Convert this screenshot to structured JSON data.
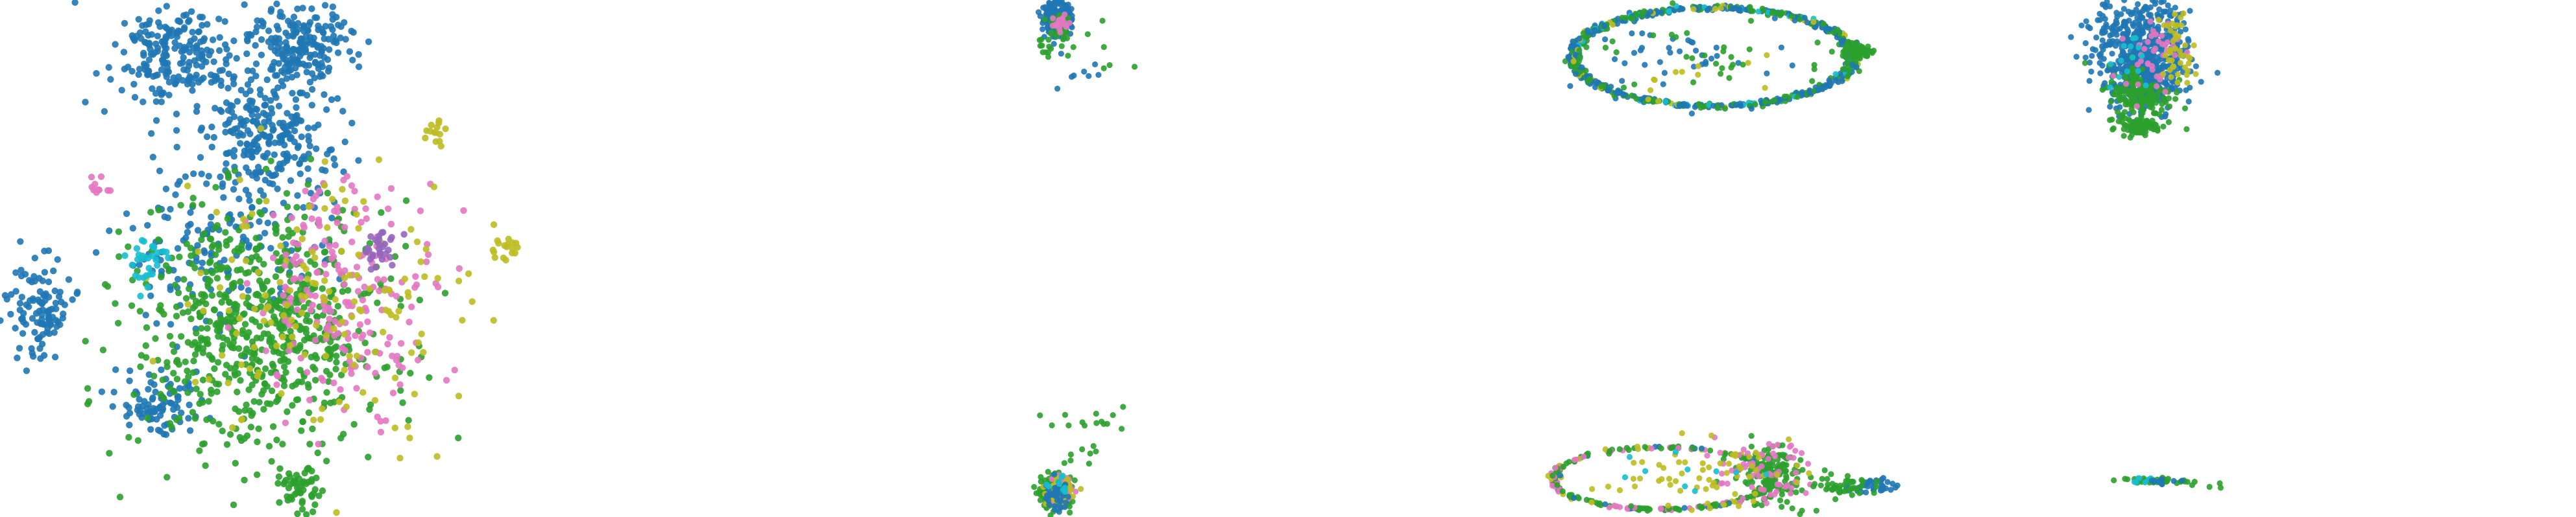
{
  "figure": {
    "title": ""
  },
  "palette": {
    "blue": "#1f77b4",
    "green": "#2ca02c",
    "pink": "#e377c2",
    "olive": "#bcbd22",
    "cyan": "#17becf",
    "purple": "#9467bd"
  },
  "chart_data": [
    {
      "type": "scatter",
      "title": "",
      "xlabel": "",
      "ylabel": "",
      "xlim": [
        0,
        100
      ],
      "ylim": [
        0,
        100
      ],
      "axes_visible": false,
      "grid": false,
      "legend": "none",
      "clusters": [
        {
          "color": "blue",
          "cx": 34,
          "cy": 89,
          "sx": 6,
          "sy": 5,
          "n": 220
        },
        {
          "color": "blue",
          "cx": 58,
          "cy": 91,
          "sx": 5,
          "sy": 4,
          "n": 200
        },
        {
          "color": "blue",
          "cx": 52,
          "cy": 74,
          "sx": 7,
          "sy": 6,
          "n": 240
        },
        {
          "color": "blue",
          "cx": 8,
          "cy": 40,
          "sx": 3,
          "sy": 5,
          "n": 110
        },
        {
          "color": "blue",
          "cx": 30,
          "cy": 22,
          "sx": 4,
          "sy": 3,
          "n": 90
        },
        {
          "color": "blue",
          "cx": 42,
          "cy": 52,
          "sx": 10,
          "sy": 8,
          "n": 160
        },
        {
          "color": "green",
          "cx": 50,
          "cy": 36,
          "sx": 12,
          "sy": 12,
          "n": 700
        },
        {
          "color": "green",
          "cx": 58,
          "cy": 5,
          "sx": 2,
          "sy": 2,
          "n": 50
        },
        {
          "color": "pink",
          "cx": 67,
          "cy": 44,
          "sx": 9,
          "sy": 11,
          "n": 200
        },
        {
          "color": "pink",
          "cx": 19,
          "cy": 64,
          "sx": 1,
          "sy": 1,
          "n": 10
        },
        {
          "color": "olive",
          "cx": 62,
          "cy": 42,
          "sx": 14,
          "sy": 14,
          "n": 150
        },
        {
          "color": "olive",
          "cx": 84,
          "cy": 75,
          "sx": 1,
          "sy": 1.5,
          "n": 14
        },
        {
          "color": "olive",
          "cx": 97,
          "cy": 52,
          "sx": 1.5,
          "sy": 1.5,
          "n": 18
        },
        {
          "color": "cyan",
          "cx": 28,
          "cy": 49,
          "sx": 2,
          "sy": 3,
          "n": 30
        },
        {
          "color": "purple",
          "cx": 73,
          "cy": 52,
          "sx": 2,
          "sy": 2,
          "n": 30
        }
      ]
    },
    {
      "type": "scatter",
      "title": "",
      "xlabel": "",
      "ylabel": "",
      "xlim": [
        0,
        100
      ],
      "ylim": [
        0,
        100
      ],
      "axes_visible": false,
      "grid": false,
      "legend": "none",
      "clusters": [
        {
          "color": "blue",
          "cx": 10,
          "cy": 93,
          "sx": 3,
          "sy": 3,
          "n": 220
        },
        {
          "color": "green",
          "cx": 11,
          "cy": 90,
          "sx": 3,
          "sy": 3,
          "n": 40
        },
        {
          "color": "pink",
          "cx": 12,
          "cy": 91,
          "sx": 2,
          "sy": 2,
          "n": 20
        },
        {
          "color": "green",
          "cx": 6,
          "cy": 82,
          "sx": 2,
          "sy": 2,
          "n": 10
        },
        {
          "color": "green",
          "cx": 30,
          "cy": 85,
          "sx": 6,
          "sy": 6,
          "n": 8
        },
        {
          "color": "blue",
          "cx": 15,
          "cy": 72,
          "sx": 8,
          "sy": 5,
          "n": 8
        }
      ]
    },
    {
      "type": "scatter",
      "title": "",
      "xlabel": "",
      "ylabel": "",
      "xlim": [
        0,
        100
      ],
      "ylim": [
        0,
        100
      ],
      "axes_visible": false,
      "grid": false,
      "legend": "none",
      "clusters": [
        {
          "color": "green",
          "cx": 10,
          "cy": 9,
          "sx": 3,
          "sy": 3,
          "n": 240
        },
        {
          "color": "pink",
          "cx": 11,
          "cy": 10,
          "sx": 2.5,
          "sy": 2.5,
          "n": 80
        },
        {
          "color": "olive",
          "cx": 11,
          "cy": 10,
          "sx": 2.5,
          "sy": 2.5,
          "n": 50
        },
        {
          "color": "blue",
          "cx": 10,
          "cy": 8,
          "sx": 3,
          "sy": 3,
          "n": 40
        },
        {
          "color": "cyan",
          "cx": 12,
          "cy": 11,
          "sx": 2,
          "sy": 2,
          "n": 10
        },
        {
          "color": "green",
          "cx": 25,
          "cy": 36,
          "sx": 10,
          "sy": 2,
          "n": 14
        },
        {
          "color": "green",
          "cx": 20,
          "cy": 22,
          "sx": 5,
          "sy": 4,
          "n": 8
        }
      ]
    },
    {
      "type": "scatter",
      "title": "",
      "xlabel": "",
      "ylabel": "",
      "xlim": [
        0,
        100
      ],
      "ylim": [
        0,
        100
      ],
      "axes_visible": false,
      "grid": false,
      "legend": "none",
      "rings": [
        {
          "cx": 45,
          "cy": 78,
          "rx": 36,
          "ry": 19,
          "n": 700,
          "mix": {
            "blue": 0.55,
            "green": 0.3,
            "olive": 0.08,
            "cyan": 0.07
          }
        }
      ],
      "clusters": [
        {
          "color": "green",
          "cx": 82,
          "cy": 80,
          "sx": 2,
          "sy": 1.5,
          "n": 60
        },
        {
          "color": "blue",
          "cx": 45,
          "cy": 78,
          "sx": 16,
          "sy": 8,
          "n": 40
        },
        {
          "color": "green",
          "cx": 45,
          "cy": 78,
          "sx": 16,
          "sy": 8,
          "n": 40
        },
        {
          "color": "olive",
          "cx": 40,
          "cy": 72,
          "sx": 10,
          "sy": 6,
          "n": 10
        }
      ]
    },
    {
      "type": "scatter",
      "title": "",
      "xlabel": "",
      "ylabel": "",
      "xlim": [
        0,
        100
      ],
      "ylim": [
        0,
        100
      ],
      "axes_visible": false,
      "grid": false,
      "legend": "none",
      "rings": [
        {
          "cx": 32,
          "cy": 15,
          "rx": 28,
          "ry": 12,
          "n": 260,
          "mix": {
            "green": 0.5,
            "pink": 0.25,
            "olive": 0.15,
            "blue": 0.1
          }
        }
      ],
      "clusters": [
        {
          "color": "green",
          "cx": 60,
          "cy": 16,
          "sx": 5,
          "sy": 6,
          "n": 150
        },
        {
          "color": "pink",
          "cx": 58,
          "cy": 17,
          "sx": 6,
          "sy": 6,
          "n": 60
        },
        {
          "color": "olive",
          "cx": 40,
          "cy": 17,
          "sx": 12,
          "sy": 6,
          "n": 60
        },
        {
          "color": "blue",
          "cx": 86,
          "cy": 12,
          "sx": 3,
          "sy": 1.5,
          "n": 40
        },
        {
          "color": "green",
          "cx": 80,
          "cy": 12,
          "sx": 4,
          "sy": 2,
          "n": 40
        },
        {
          "color": "cyan",
          "cx": 40,
          "cy": 18,
          "sx": 10,
          "sy": 5,
          "n": 10
        }
      ]
    },
    {
      "type": "scatter",
      "title": "",
      "xlabel": "",
      "ylabel": "",
      "xlim": [
        0,
        100
      ],
      "ylim": [
        0,
        100
      ],
      "axes_visible": false,
      "grid": false,
      "legend": "none",
      "clusters": [
        {
          "color": "blue",
          "cx": 34,
          "cy": 84,
          "sx": 9,
          "sy": 9,
          "n": 420
        },
        {
          "color": "blue",
          "cx": 34,
          "cy": 68,
          "sx": 6,
          "sy": 7,
          "n": 240
        },
        {
          "color": "green",
          "cx": 33,
          "cy": 63,
          "sx": 6,
          "sy": 6,
          "n": 160
        },
        {
          "color": "green",
          "cx": 33,
          "cy": 51,
          "sx": 4,
          "sy": 1.5,
          "n": 60
        },
        {
          "color": "pink",
          "cx": 37,
          "cy": 80,
          "sx": 5,
          "sy": 7,
          "n": 40
        },
        {
          "color": "olive",
          "cx": 47,
          "cy": 80,
          "sx": 3,
          "sy": 8,
          "n": 45
        },
        {
          "color": "cyan",
          "cx": 30,
          "cy": 76,
          "sx": 4,
          "sy": 6,
          "n": 14
        }
      ]
    },
    {
      "type": "scatter",
      "title": "",
      "xlabel": "",
      "ylabel": "",
      "xlim": [
        0,
        100
      ],
      "ylim": [
        0,
        100
      ],
      "axes_visible": false,
      "grid": false,
      "legend": "none",
      "clusters": [
        {
          "color": "green",
          "cx": 38,
          "cy": 14,
          "sx": 6,
          "sy": 0.6,
          "n": 40
        },
        {
          "color": "cyan",
          "cx": 34,
          "cy": 14,
          "sx": 3,
          "sy": 0.6,
          "n": 8
        },
        {
          "color": "blue",
          "cx": 40,
          "cy": 14,
          "sx": 4,
          "sy": 0.6,
          "n": 8
        },
        {
          "color": "green",
          "cx": 58,
          "cy": 12,
          "sx": 4,
          "sy": 1,
          "n": 4
        }
      ]
    }
  ]
}
